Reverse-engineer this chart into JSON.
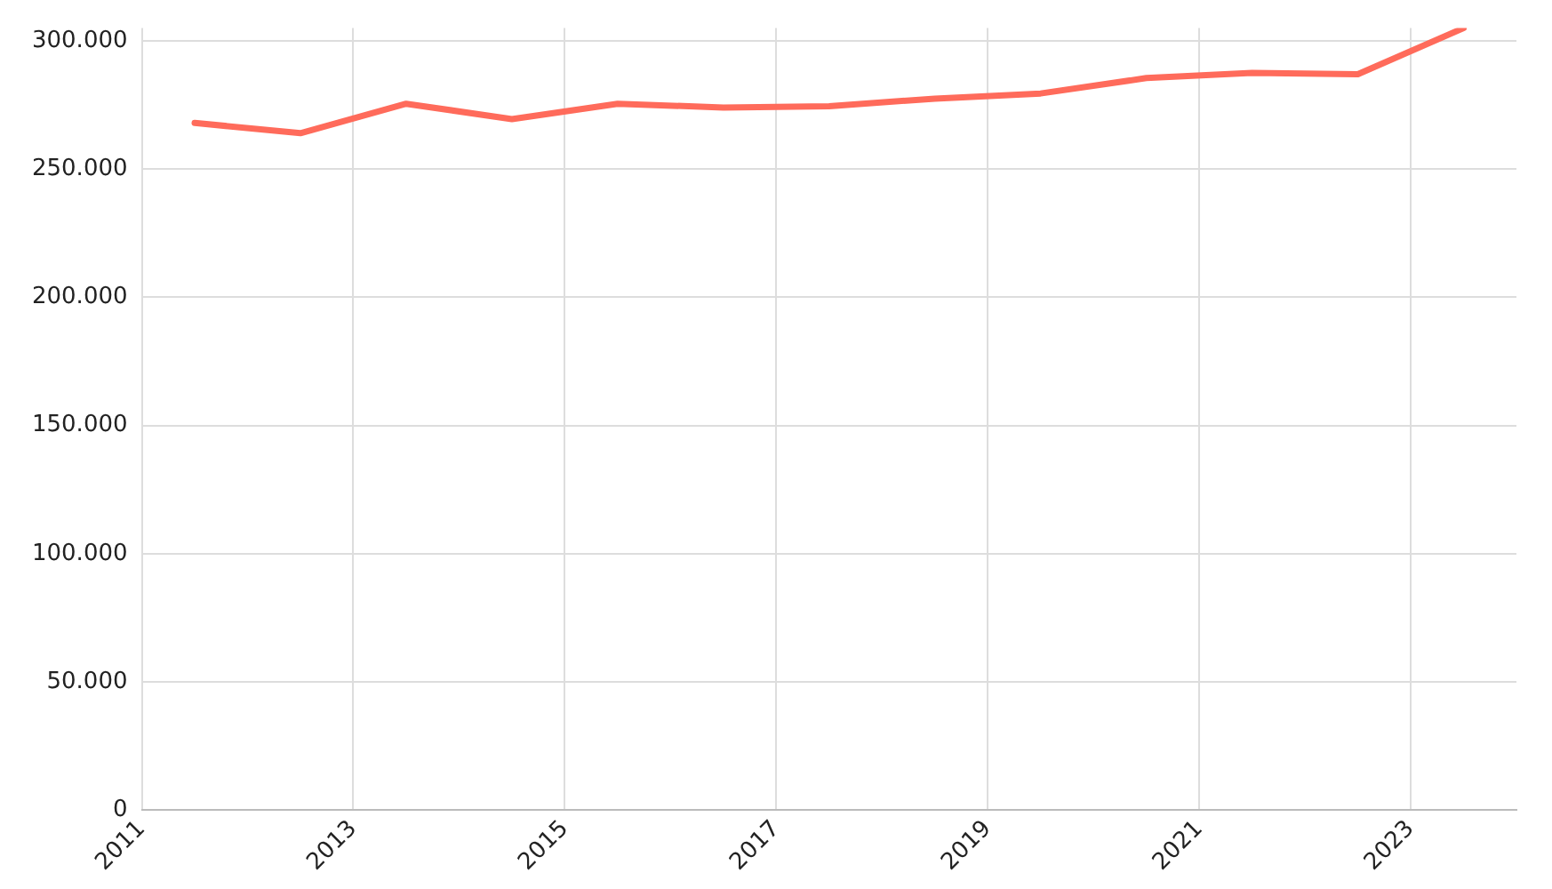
{
  "chart_data": {
    "type": "line",
    "x": [
      2011.5,
      2012.5,
      2013.5,
      2014.5,
      2015.5,
      2016.5,
      2017.5,
      2018.5,
      2019.5,
      2020.5,
      2021.5,
      2022.5,
      2023.5
    ],
    "series": [
      {
        "color": "#ff6b5b",
        "values": [
          268000,
          264000,
          275500,
          269500,
          275500,
          274000,
          274500,
          277500,
          279500,
          285500,
          287500,
          287000,
          305000
        ]
      }
    ],
    "xlim": [
      2011,
      2024
    ],
    "xticks": [
      2011,
      2013,
      2015,
      2017,
      2019,
      2021,
      2023
    ],
    "ylim": [
      0,
      305000
    ],
    "yticks": [
      {
        "value": 0,
        "label": "0"
      },
      {
        "value": 50000,
        "label": "50.000"
      },
      {
        "value": 100000,
        "label": "100.000"
      },
      {
        "value": 150000,
        "label": "150.000"
      },
      {
        "value": 200000,
        "label": "200.000"
      },
      {
        "value": 250000,
        "label": "250.000"
      },
      {
        "value": 300000,
        "label": "300.000"
      }
    ],
    "grid": true,
    "legend": false,
    "marker": "none",
    "line_style": "solid"
  }
}
